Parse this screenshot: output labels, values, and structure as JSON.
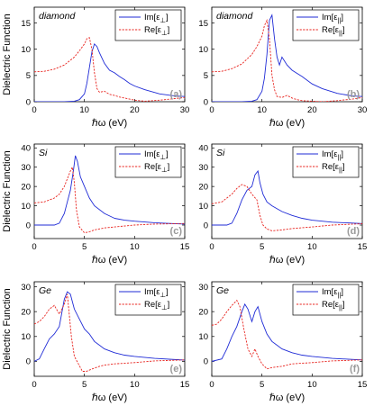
{
  "colors": {
    "im": "#1f2bd6",
    "re": "#e8241f",
    "tag": "#9a9a9a"
  },
  "chart_data": [
    {
      "type": "line",
      "material": "diamond",
      "tag": "(a)",
      "xlabel": "ℏω (eV)",
      "ylabel": "Dielectric Function",
      "xlim": [
        0,
        30
      ],
      "ylim": [
        0,
        18
      ],
      "xticks": [
        0,
        10,
        20,
        30
      ],
      "yticks": [
        0,
        5,
        10,
        15
      ],
      "legend_position": "top-right",
      "series": [
        {
          "name": "Im[ε⊥]",
          "color": "#1f2bd6",
          "style": "solid",
          "x": [
            0,
            6,
            8,
            9,
            10,
            10.5,
            11,
            11.5,
            12,
            12.5,
            13,
            14,
            15,
            16,
            17,
            18,
            19,
            20,
            22,
            25,
            28,
            30
          ],
          "y": [
            0,
            0,
            0.1,
            0.4,
            1.5,
            3.5,
            6.5,
            9.5,
            11,
            10.5,
            9.3,
            7.3,
            6,
            5.5,
            4.8,
            4.2,
            3.5,
            3,
            2.3,
            1.5,
            1.1,
            1
          ]
        },
        {
          "name": "Re[ε⊥]",
          "color": "#e8241f",
          "style": "dashed",
          "x": [
            0,
            2,
            4,
            6,
            8,
            9,
            10,
            10.5,
            11,
            11.5,
            12,
            12.5,
            13,
            14,
            15,
            16,
            17,
            18,
            20,
            22,
            25,
            28,
            30
          ],
          "y": [
            5.7,
            5.8,
            6.2,
            7,
            8.5,
            9.7,
            11,
            12,
            12.2,
            10,
            5.5,
            2.5,
            1.8,
            2,
            1.4,
            1.2,
            0.9,
            0.7,
            0.3,
            0.1,
            0.3,
            0.6,
            0.8
          ]
        }
      ]
    },
    {
      "type": "line",
      "material": "diamond",
      "tag": "(b)",
      "xlabel": "ℏω (eV)",
      "ylabel": "",
      "xlim": [
        0,
        30
      ],
      "ylim": [
        0,
        18
      ],
      "xticks": [
        0,
        10,
        20,
        30
      ],
      "yticks": [
        0,
        5,
        10,
        15
      ],
      "legend_position": "top-right",
      "series": [
        {
          "name": "Im[ε||]",
          "color": "#1f2bd6",
          "style": "solid",
          "x": [
            0,
            6,
            8,
            9,
            10,
            10.5,
            11,
            11.5,
            12,
            12.5,
            13,
            13.5,
            14,
            15,
            16,
            17,
            18,
            20,
            22,
            25,
            28,
            30
          ],
          "y": [
            0,
            0,
            0.1,
            0.4,
            2,
            4.5,
            9,
            15.5,
            16.5,
            12,
            8.5,
            7,
            8.5,
            7,
            6,
            5.4,
            4.8,
            3.4,
            2.5,
            1.6,
            1.1,
            1
          ]
        },
        {
          "name": "Re[ε||]",
          "color": "#e8241f",
          "style": "dashed",
          "x": [
            0,
            2,
            4,
            6,
            8,
            9,
            10,
            10.5,
            11,
            11.5,
            12,
            12.5,
            13,
            14,
            15,
            16,
            17,
            18,
            20,
            22,
            25,
            28,
            30
          ],
          "y": [
            5.7,
            5.8,
            6.3,
            7.2,
            9,
            10.5,
            12.5,
            14.5,
            15.5,
            12,
            5,
            2.3,
            1,
            0.8,
            1.2,
            0.7,
            0.4,
            0.2,
            0.1,
            0,
            0.2,
            0.5,
            0.8
          ]
        }
      ]
    },
    {
      "type": "line",
      "material": "Si",
      "tag": "(c)",
      "xlabel": "ℏω (eV)",
      "ylabel": "Dielectric Function",
      "xlim": [
        0,
        15
      ],
      "ylim": [
        -7,
        42
      ],
      "xticks": [
        0,
        5,
        10,
        15
      ],
      "yticks": [
        0,
        10,
        20,
        30,
        40
      ],
      "legend_position": "top-right",
      "series": [
        {
          "name": "Im[ε⊥]",
          "color": "#1f2bd6",
          "style": "solid",
          "x": [
            0,
            2,
            2.5,
            3,
            3.3,
            3.6,
            3.9,
            4.1,
            4.3,
            4.6,
            5,
            5.5,
            6,
            7,
            8,
            9,
            10,
            12,
            15
          ],
          "y": [
            0,
            0,
            1,
            6,
            12,
            18,
            28,
            36,
            33,
            25,
            20,
            14,
            10,
            6,
            3.5,
            2.5,
            2,
            1.2,
            0.5
          ]
        },
        {
          "name": "Re[ε⊥]",
          "color": "#e8241f",
          "style": "dashed",
          "x": [
            0,
            1,
            2,
            2.5,
            3,
            3.3,
            3.6,
            3.8,
            4,
            4.2,
            4.5,
            5,
            5.5,
            6,
            7,
            8,
            10,
            12,
            15
          ],
          "y": [
            11.5,
            12,
            14,
            16,
            20,
            24,
            28,
            30,
            22,
            8,
            -1,
            -4,
            -3.5,
            -2.5,
            -1.5,
            -1,
            0,
            0.5,
            0.8
          ]
        }
      ]
    },
    {
      "type": "line",
      "material": "Si",
      "tag": "(d)",
      "xlabel": "ℏω (eV)",
      "ylabel": "",
      "xlim": [
        0,
        15
      ],
      "ylim": [
        -7,
        42
      ],
      "xticks": [
        0,
        5,
        10,
        15
      ],
      "yticks": [
        0,
        10,
        20,
        30,
        40
      ],
      "legend_position": "top-right",
      "series": [
        {
          "name": "Im[ε||]",
          "color": "#1f2bd6",
          "style": "solid",
          "x": [
            0,
            1.5,
            2,
            2.5,
            3,
            3.5,
            4,
            4.3,
            4.6,
            4.8,
            5.1,
            5.5,
            6,
            7,
            8,
            9,
            10,
            12,
            15
          ],
          "y": [
            0,
            0,
            1,
            6,
            13,
            18,
            20,
            26,
            28,
            22,
            16,
            12,
            10,
            7,
            5,
            3.5,
            2.5,
            1.5,
            0.8
          ]
        },
        {
          "name": "Re[ε||]",
          "color": "#e8241f",
          "style": "dashed",
          "x": [
            0,
            1,
            2,
            2.5,
            3,
            3.5,
            4,
            4.5,
            4.8,
            5.1,
            5.5,
            6,
            7,
            8,
            10,
            12,
            15
          ],
          "y": [
            11,
            12,
            16,
            19,
            21,
            20,
            16,
            13,
            5,
            0,
            -2,
            -3,
            -2.5,
            -1.8,
            -1,
            0,
            0.7
          ]
        }
      ]
    },
    {
      "type": "line",
      "material": "Ge",
      "tag": "(e)",
      "xlabel": "ℏω (eV)",
      "ylabel": "Dielectric Function",
      "xlim": [
        0,
        15
      ],
      "ylim": [
        -6,
        32
      ],
      "xticks": [
        0,
        5,
        10,
        15
      ],
      "yticks": [
        0,
        10,
        20,
        30
      ],
      "legend_position": "top-right",
      "series": [
        {
          "name": "Im[ε⊥]",
          "color": "#1f2bd6",
          "style": "solid",
          "x": [
            0,
            0.5,
            1,
            1.5,
            2,
            2.5,
            3,
            3.3,
            3.6,
            4,
            4.5,
            5,
            5.5,
            6,
            7,
            8,
            9,
            10,
            12,
            15
          ],
          "y": [
            0,
            1,
            5,
            9,
            11,
            14,
            25,
            28,
            27,
            21,
            17,
            13,
            11,
            8,
            5,
            3.5,
            2.5,
            2,
            1.2,
            0.5
          ]
        },
        {
          "name": "Re[ε⊥]",
          "color": "#e8241f",
          "style": "dashed",
          "x": [
            0,
            0.5,
            1,
            1.5,
            2,
            2.5,
            3,
            3.3,
            3.7,
            4,
            4.4,
            4.8,
            5.2,
            5.8,
            6.5,
            7,
            8,
            10,
            12,
            15
          ],
          "y": [
            15,
            16,
            18,
            21,
            22.5,
            19,
            23,
            27,
            10,
            2,
            -1,
            -4,
            -4,
            -3,
            -2,
            -1.5,
            -1,
            -0.5,
            0.2,
            0.6
          ]
        }
      ]
    },
    {
      "type": "line",
      "material": "Ge",
      "tag": "(f)",
      "xlabel": "ℏω (eV)",
      "ylabel": "",
      "xlim": [
        0,
        15
      ],
      "ylim": [
        -6,
        32
      ],
      "xticks": [
        0,
        5,
        10,
        15
      ],
      "yticks": [
        0,
        10,
        20,
        30
      ],
      "legend_position": "top-right",
      "series": [
        {
          "name": "Im[ε||]",
          "color": "#1f2bd6",
          "style": "solid",
          "x": [
            0,
            1,
            1.5,
            2,
            2.5,
            3,
            3.3,
            3.6,
            4,
            4.3,
            4.6,
            5,
            5.5,
            6,
            7,
            8,
            9,
            10,
            12,
            15
          ],
          "y": [
            0,
            1,
            5,
            10,
            14,
            20,
            23,
            21,
            16,
            20,
            22,
            16,
            11,
            8,
            5,
            3.5,
            2.5,
            2,
            1.2,
            0.6
          ]
        },
        {
          "name": "Re[ε||]",
          "color": "#e8241f",
          "style": "dashed",
          "x": [
            0,
            0.5,
            1,
            1.5,
            2,
            2.5,
            2.8,
            3.2,
            3.6,
            4,
            4.3,
            4.6,
            5,
            5.5,
            6,
            7,
            8,
            10,
            12,
            15
          ],
          "y": [
            14.5,
            15,
            17,
            20,
            22.5,
            24.5,
            22,
            13,
            5,
            2,
            5,
            2,
            -1,
            -3,
            -2.5,
            -2,
            -1,
            -0.5,
            0.2,
            0.6
          ]
        }
      ]
    }
  ]
}
